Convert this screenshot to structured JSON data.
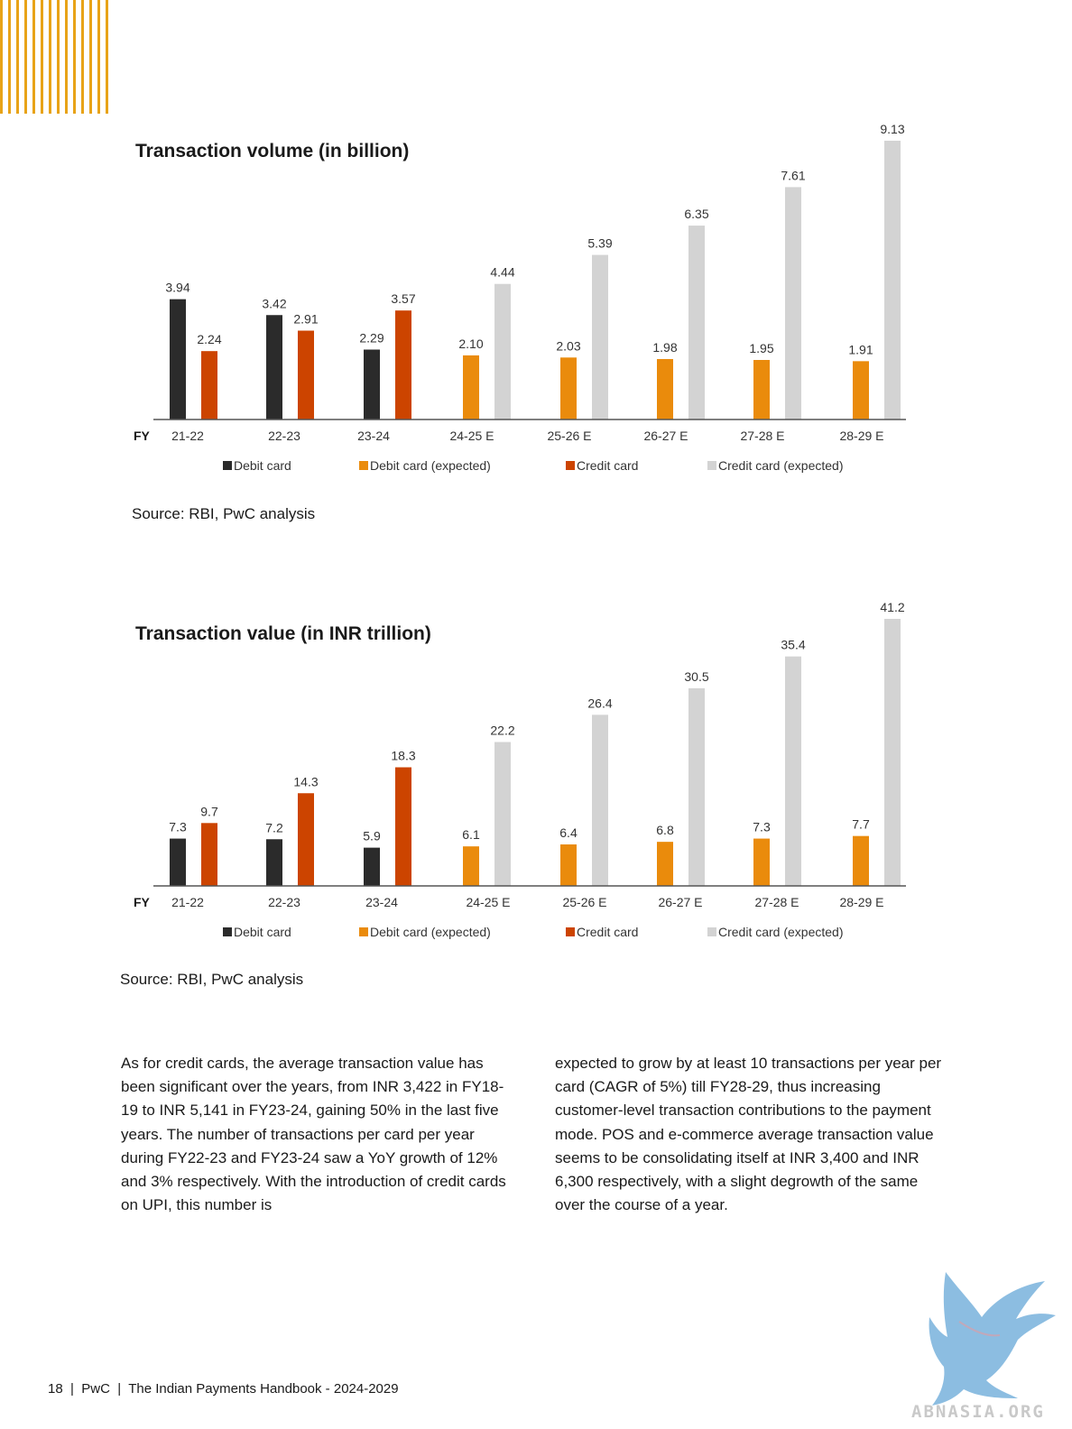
{
  "chart_data": [
    {
      "type": "bar",
      "title": "Transaction volume (in billion)",
      "xlabel": "FY",
      "categories": [
        "21-22",
        "22-23",
        "23-24",
        "24-25 E",
        "25-26 E",
        "26-27 E",
        "27-28 E",
        "28-29 E"
      ],
      "series": [
        {
          "name": "Debit card",
          "values": [
            3.94,
            3.42,
            2.29,
            null,
            null,
            null,
            null,
            null
          ]
        },
        {
          "name": "Credit card",
          "values": [
            2.24,
            2.91,
            3.57,
            null,
            null,
            null,
            null,
            null
          ]
        },
        {
          "name": "Debit card (expected)",
          "values": [
            null,
            null,
            null,
            2.1,
            2.03,
            1.98,
            1.95,
            1.91
          ]
        },
        {
          "name": "Credit card (expected)",
          "values": [
            null,
            null,
            null,
            4.44,
            5.39,
            6.35,
            7.61,
            9.13
          ]
        }
      ],
      "value_labels": [
        [
          "3.94",
          "2.24"
        ],
        [
          "3.42",
          "2.91"
        ],
        [
          "2.29",
          "3.57"
        ],
        [
          "2.10",
          "4.44"
        ],
        [
          "2.03",
          "5.39"
        ],
        [
          "1.98",
          "6.35"
        ],
        [
          "1.95",
          "7.61"
        ],
        [
          "1.91",
          "9.13"
        ]
      ],
      "ylim": [
        0,
        9.13
      ],
      "grid": false,
      "legend_position": "bottom"
    },
    {
      "type": "bar",
      "title": "Transaction value (in INR trillion)",
      "xlabel": "FY",
      "categories": [
        "21-22",
        "22-23",
        "23-24",
        "24-25 E",
        "25-26 E",
        "26-27 E",
        "27-28 E",
        "28-29 E"
      ],
      "series": [
        {
          "name": "Debit card",
          "values": [
            7.3,
            7.2,
            5.9,
            null,
            null,
            null,
            null,
            null
          ]
        },
        {
          "name": "Credit card",
          "values": [
            9.7,
            14.3,
            18.3,
            null,
            null,
            null,
            null,
            null
          ]
        },
        {
          "name": "Debit card (expected)",
          "values": [
            null,
            null,
            null,
            6.1,
            6.4,
            6.8,
            7.3,
            7.7
          ]
        },
        {
          "name": "Credit card (expected)",
          "values": [
            null,
            null,
            null,
            22.2,
            26.4,
            30.5,
            35.4,
            41.2
          ]
        }
      ],
      "value_labels": [
        [
          "7.3",
          "9.7"
        ],
        [
          "7.2",
          "14.3"
        ],
        [
          "5.9",
          "18.3"
        ],
        [
          "6.1",
          "22.2"
        ],
        [
          "6.4",
          "26.4"
        ],
        [
          "6.8",
          "30.5"
        ],
        [
          "7.3",
          "35.4"
        ],
        [
          "7.7",
          "41.2"
        ]
      ],
      "ylim": [
        0,
        41.2
      ],
      "grid": false,
      "legend_position": "bottom"
    }
  ],
  "colors": {
    "debit": "#2b2b2b",
    "credit": "#cc4400",
    "debit_expected": "#ea8b0c",
    "credit_expected": "#d3d3d3",
    "stripes": "#e8a317"
  },
  "sources": [
    "Source: RBI, PwC analysis",
    "Source: RBI, PwC analysis"
  ],
  "body": {
    "col1": "As for credit cards, the average transaction value has been significant over the years, from INR 3,422 in FY18-19 to INR 5,141 in FY23-24, gaining 50% in the last five years. The number of transactions per card per year during FY22-23 and FY23-24 saw a YoY growth of 12% and 3% respectively. With the introduction of credit cards on UPI, this number is",
    "col2": "expected to grow by at least 10 transactions per year per card (CAGR of 5%) till FY28-29, thus increasing customer-level transaction contributions to the payment mode. POS and e-commerce average transaction value seems to be consolidating itself at INR 3,400 and INR 6,300 respectively, with a slight degrowth of the same over the course of a year."
  },
  "footer": "18  |  PwC  |  The Indian Payments Handbook - 2024-2029",
  "watermark": {
    "text": "ABNASIA.ORG",
    "icon": "griffin-logo-icon"
  }
}
